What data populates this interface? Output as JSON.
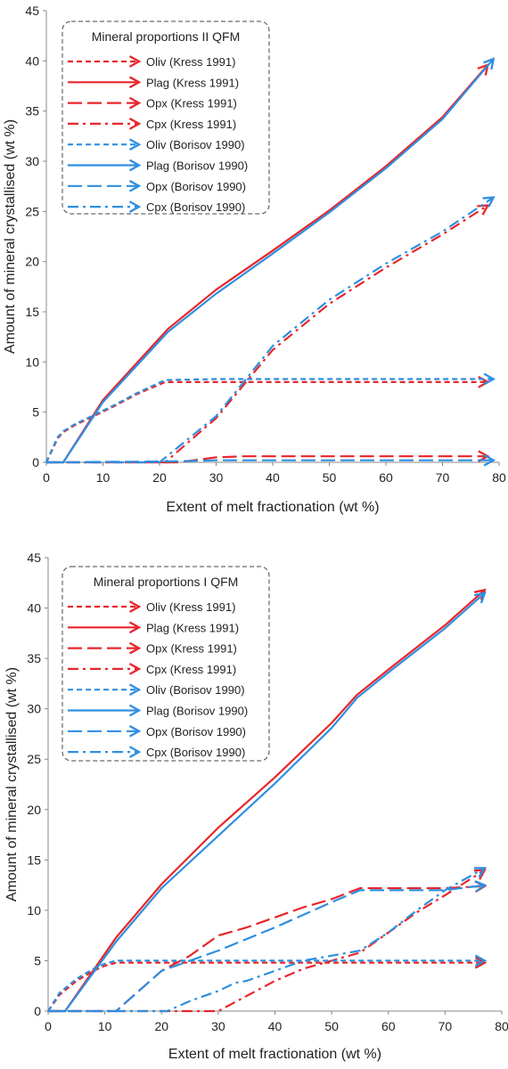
{
  "colors": {
    "kress": "#e8262b",
    "borisov": "#2f8fe0",
    "axis": "#888888",
    "grid": "#d0d0d0",
    "legend_border": "#444444"
  },
  "chart_data": [
    {
      "type": "line",
      "title": "",
      "xlabel": "Extent of melt fractionation (wt %)",
      "ylabel": "Amount of mineral crystallised (wt %)",
      "xlim": [
        0,
        80
      ],
      "ylim": [
        0,
        45
      ],
      "xticks": [
        0,
        10,
        20,
        30,
        40,
        50,
        60,
        70,
        80
      ],
      "yticks": [
        0,
        5,
        10,
        15,
        20,
        25,
        30,
        35,
        40,
        45
      ],
      "legend_title": "Mineral proportions II QFM",
      "legend_position": "top-left",
      "series": [
        {
          "name": "Oliv (Kress 1991)",
          "source": "kress",
          "dash": "6,4",
          "x": [
            0,
            1,
            2,
            3,
            5,
            8,
            12,
            16,
            21,
            30,
            40,
            50,
            60,
            70,
            78
          ],
          "y": [
            0,
            1.2,
            2.4,
            3.0,
            3.7,
            4.5,
            5.6,
            6.8,
            8.0,
            8.0,
            8.0,
            8.0,
            8.0,
            8.0,
            8.0
          ]
        },
        {
          "name": "Plag (Kress 1991)",
          "source": "kress",
          "dash": "",
          "x": [
            0,
            3,
            10,
            21.5,
            30,
            40,
            50,
            60,
            70,
            78
          ],
          "y": [
            0,
            0,
            6.2,
            13.3,
            17.2,
            21.1,
            25.1,
            29.5,
            34.4,
            39.6
          ]
        },
        {
          "name": "Opx (Kress 1991)",
          "source": "kress",
          "dash": "16,6",
          "x": [
            0,
            23,
            26,
            30,
            35,
            45,
            60,
            78
          ],
          "y": [
            0,
            0,
            0.2,
            0.5,
            0.6,
            0.6,
            0.6,
            0.6
          ]
        },
        {
          "name": "Cpx (Kress 1991)",
          "source": "kress",
          "dash": "12,5,3,5",
          "x": [
            0,
            21,
            30,
            40,
            50,
            60,
            70,
            78
          ],
          "y": [
            0,
            0,
            4.4,
            11.2,
            15.8,
            19.4,
            22.7,
            25.6
          ]
        },
        {
          "name": "Oliv (Borisov 1990)",
          "source": "borisov",
          "dash": "6,4",
          "x": [
            0,
            1,
            2,
            3,
            5,
            8,
            12,
            16,
            21,
            30,
            40,
            50,
            60,
            70,
            79
          ],
          "y": [
            0,
            1.3,
            2.5,
            3.1,
            3.8,
            4.6,
            5.7,
            6.9,
            8.2,
            8.3,
            8.3,
            8.3,
            8.3,
            8.3,
            8.3
          ]
        },
        {
          "name": "Plag (Borisov 1990)",
          "source": "borisov",
          "dash": "",
          "x": [
            0,
            3,
            10,
            21.5,
            30,
            40,
            50,
            60,
            70,
            79
          ],
          "y": [
            0,
            0,
            6.0,
            13.0,
            16.8,
            20.8,
            24.9,
            29.3,
            34.2,
            40.2
          ]
        },
        {
          "name": "Opx (Borisov 1990)",
          "source": "borisov",
          "dash": "16,6",
          "x": [
            0,
            22,
            30,
            40,
            50,
            60,
            70,
            79
          ],
          "y": [
            0,
            0.1,
            0.2,
            0.2,
            0.2,
            0.2,
            0.2,
            0.2
          ]
        },
        {
          "name": "Cpx (Borisov 1990)",
          "source": "borisov",
          "dash": "12,5,3,5",
          "x": [
            0,
            20,
            30,
            40,
            50,
            60,
            70,
            79
          ],
          "y": [
            0,
            0,
            4.6,
            11.6,
            16.2,
            19.8,
            23.0,
            26.4
          ]
        }
      ]
    },
    {
      "type": "line",
      "title": "",
      "xlabel": "Extent of melt fractionation (wt %)",
      "ylabel": "Amount of mineral crystallised (wt %)",
      "xlim": [
        0,
        80
      ],
      "ylim": [
        0,
        45
      ],
      "xticks": [
        0,
        10,
        20,
        30,
        40,
        50,
        60,
        70,
        80
      ],
      "yticks": [
        0,
        5,
        10,
        15,
        20,
        25,
        30,
        35,
        40,
        45
      ],
      "legend_title": "Mineral proportions I QFM",
      "legend_position": "top-left",
      "series": [
        {
          "name": "Oliv (Kress 1991)",
          "source": "kress",
          "dash": "6,4",
          "x": [
            0,
            2,
            5,
            8,
            10,
            12,
            20,
            30,
            40,
            50,
            60,
            70,
            77
          ],
          "y": [
            0,
            1.6,
            3.0,
            4.0,
            4.5,
            4.8,
            4.8,
            4.8,
            4.8,
            4.8,
            4.8,
            4.8,
            4.8
          ]
        },
        {
          "name": "Plag (Kress 1991)",
          "source": "kress",
          "dash": "",
          "x": [
            0,
            3,
            12,
            20,
            30,
            40,
            50,
            54.5,
            60,
            70,
            77
          ],
          "y": [
            0,
            0,
            7.3,
            12.6,
            18.2,
            23.2,
            28.6,
            31.4,
            33.9,
            38.3,
            41.8
          ]
        },
        {
          "name": "Opx (Kress 1991)",
          "source": "kress",
          "dash": "16,6",
          "x": [
            0,
            12,
            15,
            20,
            25,
            30,
            35,
            40,
            45,
            50,
            55,
            60,
            70,
            77
          ],
          "y": [
            0,
            0,
            1.5,
            4.0,
            5.5,
            7.5,
            8.3,
            9.3,
            10.3,
            11.1,
            12.2,
            12.2,
            12.2,
            12.4
          ]
        },
        {
          "name": "Cpx (Kress 1991)",
          "source": "kress",
          "dash": "12,5,3,5",
          "x": [
            0,
            30,
            40,
            45,
            50,
            55,
            60,
            65,
            70,
            77
          ],
          "y": [
            0,
            0,
            3.0,
            4.2,
            5.0,
            5.8,
            7.8,
            9.8,
            11.5,
            14.0
          ]
        },
        {
          "name": "Oliv (Borisov 1990)",
          "source": "borisov",
          "dash": "6,4",
          "x": [
            0,
            2,
            5,
            8,
            10,
            12,
            20,
            30,
            40,
            50,
            60,
            70,
            77
          ],
          "y": [
            0,
            1.8,
            3.2,
            4.2,
            4.7,
            5.0,
            5.0,
            5.0,
            5.0,
            5.0,
            5.0,
            5.0,
            5.0
          ]
        },
        {
          "name": "Plag (Borisov 1990)",
          "source": "borisov",
          "dash": "",
          "x": [
            0,
            3,
            12,
            20,
            30,
            40,
            50,
            54.5,
            60,
            70,
            77
          ],
          "y": [
            0,
            0,
            6.9,
            12.2,
            17.4,
            22.6,
            28.1,
            31.1,
            33.6,
            38.0,
            41.5
          ]
        },
        {
          "name": "Opx (Borisov 1990)",
          "source": "borisov",
          "dash": "16,6",
          "x": [
            0,
            12,
            15,
            20,
            25,
            30,
            40,
            50,
            55,
            60,
            70,
            77
          ],
          "y": [
            0,
            0,
            1.5,
            4.0,
            5.0,
            6.0,
            8.3,
            10.8,
            12.0,
            12.0,
            12.0,
            12.5
          ]
        },
        {
          "name": "Cpx (Borisov 1990)",
          "source": "borisov",
          "dash": "12,5,3,5",
          "x": [
            0,
            21,
            25,
            30,
            33,
            35,
            40,
            45,
            50,
            55,
            60,
            65,
            70,
            77
          ],
          "y": [
            0,
            0,
            1.0,
            2.0,
            2.8,
            3.0,
            4.0,
            5.0,
            5.5,
            6.0,
            7.8,
            10.0,
            12.0,
            14.2
          ]
        }
      ]
    }
  ]
}
